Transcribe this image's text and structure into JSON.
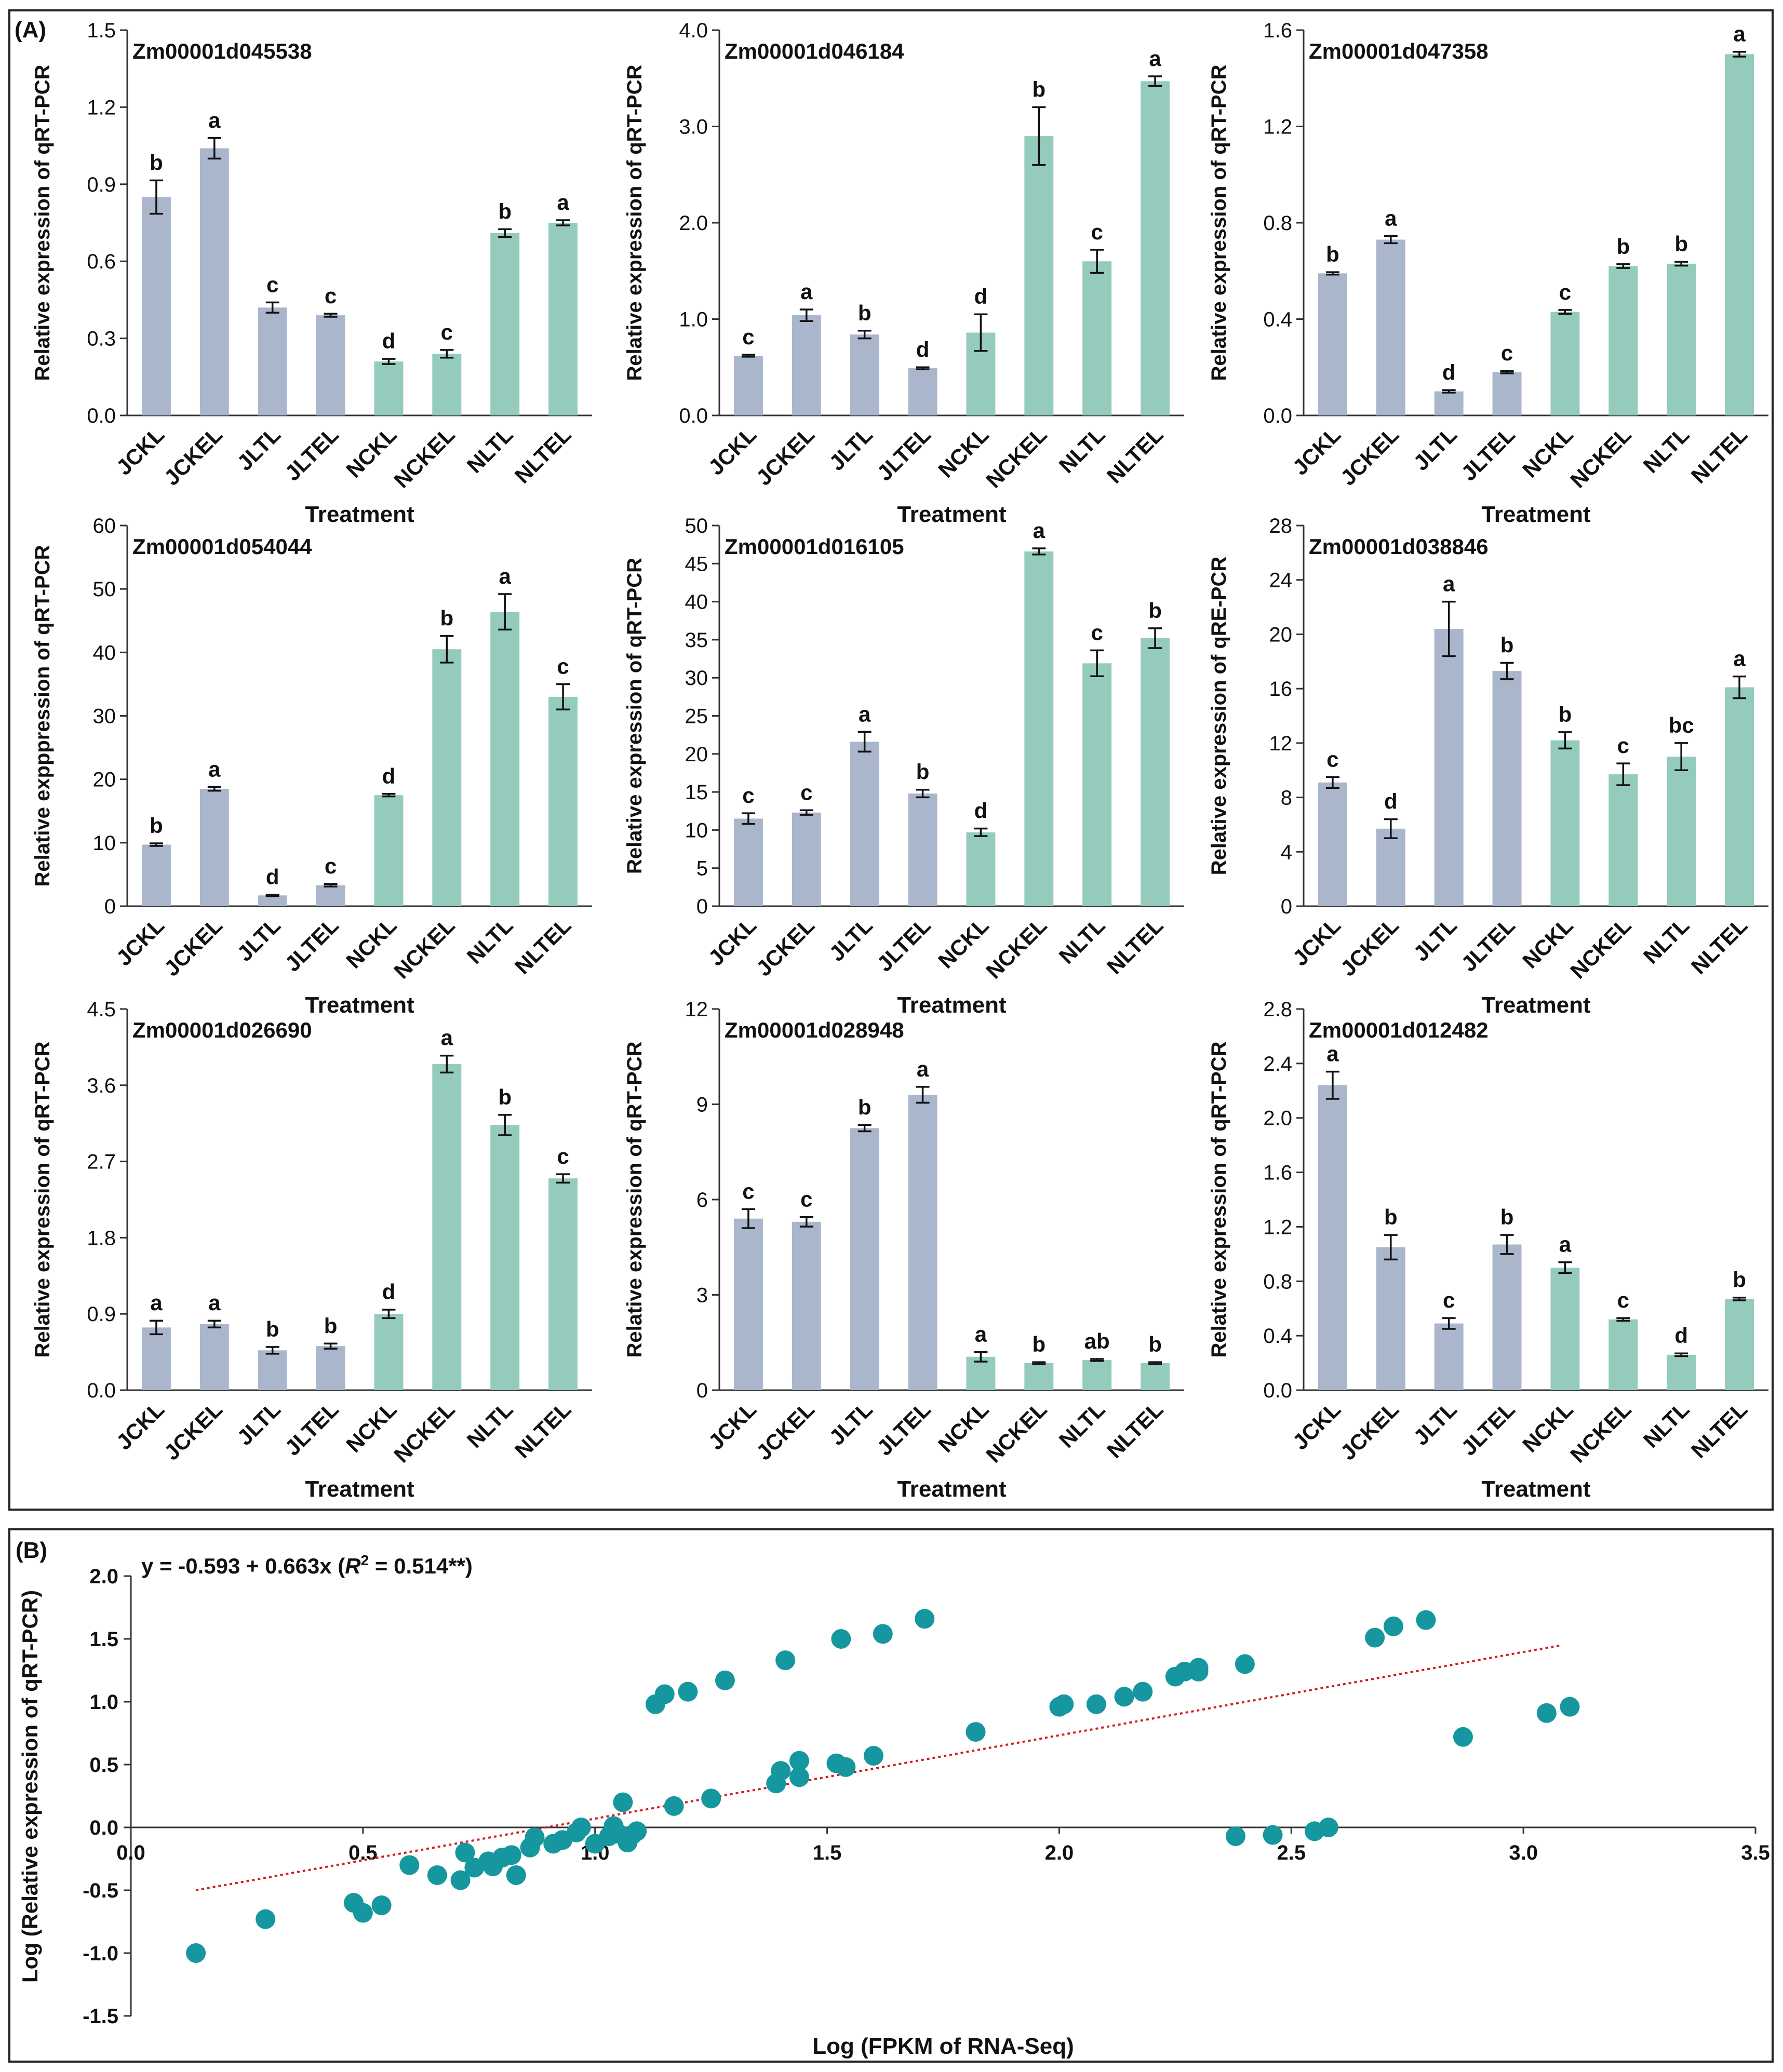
{
  "figure": {
    "panel_a_label": "(A)",
    "panel_b_label": "(B)",
    "colors": {
      "j_bar": "#aab6cc",
      "n_bar": "#94cbbc",
      "scatter_point": "#16979f",
      "trend_line": "#d01a20",
      "frame": "#222222"
    }
  },
  "chart_data": [
    {
      "type": "bar",
      "title": "Zm00001d045538",
      "ylabel": "Relative expression of qRT-PCR",
      "xlabel": "Treatment",
      "categories": [
        "JCKL",
        "JCKEL",
        "JLTL",
        "JLTEL",
        "NCKL",
        "NCKEL",
        "NLTL",
        "NLTEL"
      ],
      "values": [
        0.85,
        1.04,
        0.42,
        0.39,
        0.21,
        0.24,
        0.71,
        0.75
      ],
      "errors": [
        0.065,
        0.04,
        0.02,
        0.006,
        0.01,
        0.015,
        0.015,
        0.01
      ],
      "letters": [
        "b",
        "a",
        "c",
        "c",
        "d",
        "c",
        "b",
        "a"
      ],
      "yticks": [
        "0.0",
        "0.3",
        "0.6",
        "0.9",
        "1.2",
        "1.5"
      ],
      "ylim": [
        0,
        1.5
      ]
    },
    {
      "type": "bar",
      "title": "Zm00001d046184",
      "ylabel": "Relative expression of qRT-PCR",
      "xlabel": "Treatment",
      "categories": [
        "JCKL",
        "JCKEL",
        "JLTL",
        "JLTEL",
        "NCKL",
        "NCKEL",
        "NLTL",
        "NLTEL"
      ],
      "values": [
        0.62,
        1.04,
        0.84,
        0.49,
        0.86,
        2.9,
        1.6,
        3.47
      ],
      "errors": [
        0.01,
        0.06,
        0.04,
        0.01,
        0.19,
        0.3,
        0.12,
        0.05
      ],
      "letters": [
        "c",
        "a",
        "b",
        "d",
        "d",
        "b",
        "c",
        "a"
      ],
      "yticks": [
        "0.0",
        "1.0",
        "2.0",
        "3.0",
        "4.0"
      ],
      "ylim": [
        0,
        4
      ]
    },
    {
      "type": "bar",
      "title": "Zm00001d047358",
      "ylabel": "Relative expression of qRT-PCR",
      "xlabel": "Treatment",
      "categories": [
        "JCKL",
        "JCKEL",
        "JLTL",
        "JLTEL",
        "NCKL",
        "NCKEL",
        "NLTL",
        "NLTEL"
      ],
      "values": [
        0.59,
        0.73,
        0.1,
        0.18,
        0.43,
        0.62,
        0.63,
        1.5
      ],
      "errors": [
        0.005,
        0.015,
        0.005,
        0.005,
        0.008,
        0.008,
        0.008,
        0.01
      ],
      "letters": [
        "b",
        "a",
        "d",
        "c",
        "c",
        "b",
        "b",
        "a"
      ],
      "yticks": [
        "0.0",
        "0.4",
        "0.8",
        "1.2",
        "1.6"
      ],
      "ylim": [
        0,
        1.6
      ]
    },
    {
      "type": "bar",
      "title": "Zm00001d054044",
      "ylabel": "Relative expppression of qRT-PCR",
      "xlabel": "Treatment",
      "categories": [
        "JCKL",
        "JCKEL",
        "JLTL",
        "JLTEL",
        "NCKL",
        "NCKEL",
        "NLTL",
        "NLTEL"
      ],
      "values": [
        9.7,
        18.5,
        1.7,
        3.3,
        17.5,
        40.5,
        46.4,
        33.0
      ],
      "errors": [
        0.2,
        0.3,
        0.1,
        0.2,
        0.2,
        2.1,
        2.8,
        2.0
      ],
      "letters": [
        "b",
        "a",
        "d",
        "c",
        "d",
        "b",
        "a",
        "c"
      ],
      "yticks": [
        "0",
        "10",
        "20",
        "30",
        "40",
        "50",
        "60"
      ],
      "ylim": [
        0,
        60
      ]
    },
    {
      "type": "bar",
      "title": "Zm00001d016105",
      "ylabel": "Relative expression of qRT-PCR",
      "xlabel": "Treatment",
      "categories": [
        "JCKL",
        "JCKEL",
        "JLTL",
        "JLTEL",
        "NCKL",
        "NCKEL",
        "NLTL",
        "NLTEL"
      ],
      "values": [
        11.5,
        12.3,
        21.6,
        14.8,
        9.7,
        46.6,
        31.9,
        35.2
      ],
      "errors": [
        0.7,
        0.3,
        1.3,
        0.5,
        0.5,
        0.4,
        1.7,
        1.3
      ],
      "letters": [
        "c",
        "c",
        "a",
        "b",
        "d",
        "a",
        "c",
        "b"
      ],
      "yticks": [
        "0",
        "5",
        "10",
        "15",
        "20",
        "25",
        "30",
        "35",
        "40",
        "45",
        "50"
      ],
      "ylim": [
        0,
        50
      ]
    },
    {
      "type": "bar",
      "title": "Zm00001d038846",
      "ylabel": "Relative expression of qRE-PCR",
      "xlabel": "Treatment",
      "categories": [
        "JCKL",
        "JCKEL",
        "JLTL",
        "JLTEL",
        "NCKL",
        "NCKEL",
        "NLTL",
        "NLTEL"
      ],
      "values": [
        9.1,
        5.7,
        20.4,
        17.3,
        12.2,
        9.7,
        11.0,
        16.1
      ],
      "errors": [
        0.4,
        0.7,
        2.0,
        0.6,
        0.6,
        0.8,
        1.0,
        0.8
      ],
      "letters": [
        "c",
        "d",
        "a",
        "b",
        "b",
        "c",
        "bc",
        "a"
      ],
      "yticks": [
        "0",
        "4",
        "8",
        "12",
        "16",
        "20",
        "24",
        "28"
      ],
      "ylim": [
        0,
        28
      ]
    },
    {
      "type": "bar",
      "title": "Zm00001d026690",
      "ylabel": "Relative expression of qRT-PCR",
      "xlabel": "Treatment",
      "categories": [
        "JCKL",
        "JCKEL",
        "JLTL",
        "JLTEL",
        "NCKL",
        "NCKEL",
        "NLTL",
        "NLTEL"
      ],
      "values": [
        0.74,
        0.78,
        0.47,
        0.52,
        0.9,
        3.85,
        3.13,
        2.5
      ],
      "errors": [
        0.08,
        0.04,
        0.04,
        0.03,
        0.05,
        0.1,
        0.12,
        0.05
      ],
      "letters": [
        "a",
        "a",
        "b",
        "b",
        "d",
        "a",
        "b",
        "c"
      ],
      "yticks": [
        "0.0",
        "0.9",
        "1.8",
        "2.7",
        "3.6",
        "4.5"
      ],
      "ylim": [
        0,
        4.5
      ]
    },
    {
      "type": "bar",
      "title": "Zm00001d028948",
      "ylabel": "Relative expression of qRT-PCR",
      "xlabel": "Treatment",
      "categories": [
        "JCKL",
        "JCKEL",
        "JLTL",
        "JLTEL",
        "NCKL",
        "NCKEL",
        "NLTL",
        "NLTEL"
      ],
      "values": [
        5.4,
        5.3,
        8.25,
        9.3,
        1.05,
        0.85,
        0.95,
        0.85
      ],
      "errors": [
        0.3,
        0.15,
        0.1,
        0.25,
        0.15,
        0.03,
        0.03,
        0.03
      ],
      "letters": [
        "c",
        "c",
        "b",
        "a",
        "a",
        "b",
        "ab",
        "b"
      ],
      "yticks": [
        "0",
        "3",
        "6",
        "9",
        "12"
      ],
      "ylim": [
        0,
        12
      ]
    },
    {
      "type": "bar",
      "title": "Zm00001d012482",
      "ylabel": "Relative expression of qRT-PCR",
      "xlabel": "Treatment",
      "categories": [
        "JCKL",
        "JCKEL",
        "JLTL",
        "JLTEL",
        "NCKL",
        "NCKEL",
        "NLTL",
        "NLTEL"
      ],
      "values": [
        2.24,
        1.05,
        0.49,
        1.07,
        0.9,
        0.52,
        0.26,
        0.67
      ],
      "errors": [
        0.1,
        0.09,
        0.04,
        0.07,
        0.04,
        0.01,
        0.01,
        0.01
      ],
      "letters": [
        "a",
        "b",
        "c",
        "b",
        "a",
        "c",
        "d",
        "b"
      ],
      "yticks": [
        "0.0",
        "0.4",
        "0.8",
        "1.2",
        "1.6",
        "2.0",
        "2.4",
        "2.8"
      ],
      "ylim": [
        0,
        2.8
      ]
    },
    {
      "type": "scatter",
      "equation": "y = -0.593 + 0.663x (",
      "r2_label": "R",
      "r2_superscript": "2",
      "r2_value": " = 0.514**)",
      "xlabel": "Log (FPKM of RNA-Seq)",
      "ylabel": "Log (Relative expression of qRT-PCR)",
      "xlim": [
        0,
        3.5
      ],
      "ylim": [
        -1.5,
        2.0
      ],
      "xticks": [
        "0.0",
        "0.5",
        "1.0",
        "1.5",
        "2.0",
        "2.5",
        "3.0",
        "3.5"
      ],
      "yticks": [
        "-1.5",
        "-1.0",
        "-0.5",
        "0.0",
        "0.5",
        "1.0",
        "1.5",
        "2.0"
      ],
      "trend": {
        "intercept": -0.593,
        "slope": 0.663,
        "x_range": [
          0.14,
          3.08
        ]
      },
      "points": [
        [
          0.14,
          -1.0
        ],
        [
          0.29,
          -0.73
        ],
        [
          0.48,
          -0.6
        ],
        [
          0.5,
          -0.68
        ],
        [
          0.54,
          -0.62
        ],
        [
          0.6,
          -0.3
        ],
        [
          0.66,
          -0.38
        ],
        [
          0.71,
          -0.42
        ],
        [
          0.72,
          -0.2
        ],
        [
          0.74,
          -0.32
        ],
        [
          0.77,
          -0.27
        ],
        [
          0.78,
          -0.31
        ],
        [
          0.8,
          -0.24
        ],
        [
          0.82,
          -0.22
        ],
        [
          0.83,
          -0.38
        ],
        [
          0.86,
          -0.16
        ],
        [
          0.87,
          -0.08
        ],
        [
          0.91,
          -0.13
        ],
        [
          0.93,
          -0.1
        ],
        [
          0.96,
          -0.04
        ],
        [
          0.97,
          0.0
        ],
        [
          1.0,
          -0.13
        ],
        [
          1.03,
          -0.07
        ],
        [
          1.04,
          0.01
        ],
        [
          1.05,
          -0.05
        ],
        [
          1.06,
          0.2
        ],
        [
          1.07,
          -0.12
        ],
        [
          1.08,
          -0.06
        ],
        [
          1.09,
          -0.03
        ],
        [
          1.13,
          0.98
        ],
        [
          1.15,
          1.06
        ],
        [
          1.17,
          0.17
        ],
        [
          1.2,
          1.08
        ],
        [
          1.25,
          0.23
        ],
        [
          1.28,
          1.17
        ],
        [
          1.39,
          0.35
        ],
        [
          1.4,
          0.45
        ],
        [
          1.41,
          1.33
        ],
        [
          1.44,
          0.4
        ],
        [
          1.44,
          0.53
        ],
        [
          1.52,
          0.51
        ],
        [
          1.53,
          1.5
        ],
        [
          1.54,
          0.48
        ],
        [
          1.6,
          0.57
        ],
        [
          1.62,
          1.54
        ],
        [
          1.71,
          1.66
        ],
        [
          1.82,
          0.76
        ],
        [
          2.0,
          0.96
        ],
        [
          2.01,
          0.98
        ],
        [
          2.08,
          0.98
        ],
        [
          2.14,
          1.04
        ],
        [
          2.18,
          1.08
        ],
        [
          2.25,
          1.2
        ],
        [
          2.27,
          1.24
        ],
        [
          2.3,
          1.24
        ],
        [
          2.3,
          1.27
        ],
        [
          2.38,
          -0.07
        ],
        [
          2.4,
          1.3
        ],
        [
          2.46,
          -0.06
        ],
        [
          2.55,
          -0.03
        ],
        [
          2.58,
          0.0
        ],
        [
          2.68,
          1.51
        ],
        [
          2.72,
          1.6
        ],
        [
          2.79,
          1.65
        ],
        [
          2.87,
          0.72
        ],
        [
          3.05,
          0.91
        ],
        [
          3.1,
          0.96
        ]
      ]
    }
  ]
}
